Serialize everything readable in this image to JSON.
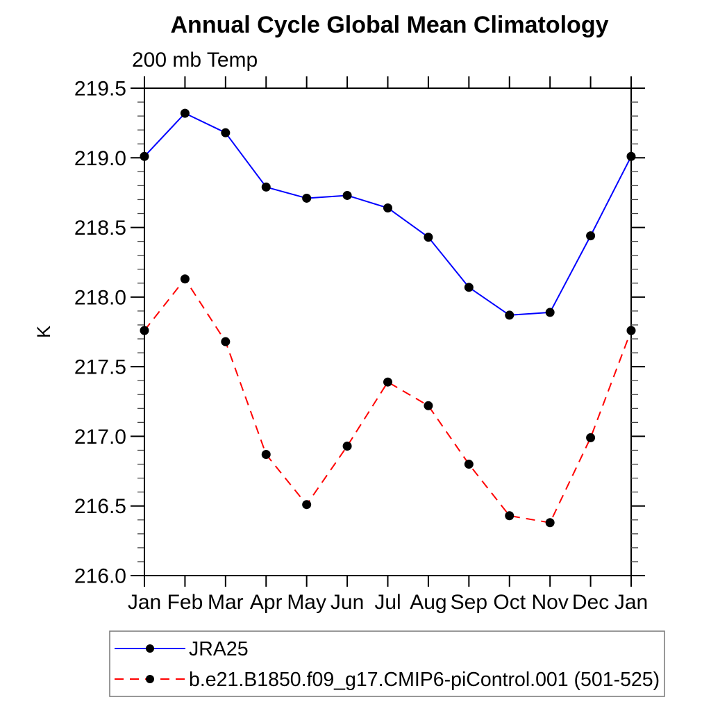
{
  "title": "Annual Cycle Global Mean Climatology",
  "subtitle": "200 mb Temp",
  "y_axis_label": "K",
  "colors": {
    "background": "#ffffff",
    "axis": "#000000",
    "marker": "#000000",
    "series1": "#0000ff",
    "series2": "#ff0000",
    "legend_border": "#777777"
  },
  "chart_data": {
    "type": "line",
    "title": "Annual Cycle Global Mean Climatology",
    "subtitle": "200 mb Temp",
    "xlabel": "",
    "ylabel": "K",
    "categories": [
      "Jan",
      "Feb",
      "Mar",
      "Apr",
      "May",
      "Jun",
      "Jul",
      "Aug",
      "Sep",
      "Oct",
      "Nov",
      "Dec",
      "Jan"
    ],
    "series": [
      {
        "name": "JRA25",
        "color": "#0000ff",
        "line_style": "solid",
        "marker": "filled-black-circle",
        "values": [
          219.01,
          219.32,
          219.18,
          218.79,
          218.71,
          218.73,
          218.64,
          218.43,
          218.07,
          217.87,
          217.89,
          218.44,
          219.01
        ]
      },
      {
        "name": "b.e21.B1850.f09_g17.CMIP6-piControl.001 (501-525)",
        "color": "#ff0000",
        "line_style": "dashed",
        "marker": "filled-black-circle",
        "values": [
          217.76,
          218.13,
          217.68,
          216.87,
          216.51,
          216.93,
          217.39,
          217.22,
          216.8,
          216.43,
          216.38,
          216.99,
          217.76
        ]
      }
    ],
    "ylim": [
      216.0,
      219.5
    ],
    "ytick_major_step": 0.5,
    "ytick_minor_step": 0.1,
    "ytick_label_format": "one_decimal",
    "grid": false,
    "tick_direction": "outward-all-four-sides",
    "legend_position": "bottom-left-boxed"
  }
}
